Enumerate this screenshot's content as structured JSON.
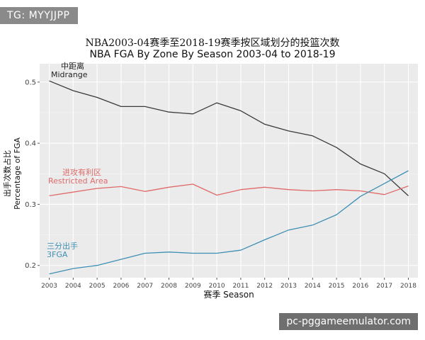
{
  "watermark": "TG: MYYJJPP",
  "site": "pc-pggameemulator.com",
  "chart_data": {
    "type": "line",
    "title": "NBA2003-04赛季至2018-19赛季按区域划分的投篮次数",
    "subtitle": "NBA FGA By Zone By Season 2003-04 to 2018-19",
    "xlabel": "赛季 Season",
    "ylabel_cn": "出手次数占比",
    "ylabel_en": "Percentage of FGA",
    "x": [
      2003,
      2004,
      2005,
      2006,
      2007,
      2008,
      2009,
      2010,
      2011,
      2012,
      2013,
      2014,
      2015,
      2016,
      2017,
      2018
    ],
    "ylim": [
      0.18,
      0.53
    ],
    "yticks": [
      0.2,
      0.3,
      0.4,
      0.5
    ],
    "ytick_labels": [
      "0.2",
      "0.3",
      "0.4",
      "0.5"
    ],
    "grid": true,
    "series": [
      {
        "name_cn": "中距离",
        "name": "Midrange",
        "color": "#3a3a3a",
        "values": [
          0.502,
          0.486,
          0.475,
          0.46,
          0.46,
          0.451,
          0.448,
          0.466,
          0.453,
          0.431,
          0.42,
          0.412,
          0.393,
          0.366,
          0.35,
          0.314
        ]
      },
      {
        "name_cn": "进攻有利区",
        "name": "Restricted Area",
        "color": "#e06a6a",
        "values": [
          0.314,
          0.32,
          0.326,
          0.329,
          0.321,
          0.328,
          0.333,
          0.315,
          0.324,
          0.328,
          0.324,
          0.322,
          0.324,
          0.322,
          0.316,
          0.33
        ]
      },
      {
        "name_cn": "三分出手",
        "name": "3FGA",
        "color": "#3e8fb4",
        "values": [
          0.186,
          0.195,
          0.2,
          0.21,
          0.22,
          0.222,
          0.22,
          0.22,
          0.225,
          0.242,
          0.258,
          0.266,
          0.283,
          0.313,
          0.334,
          0.355
        ]
      }
    ]
  }
}
